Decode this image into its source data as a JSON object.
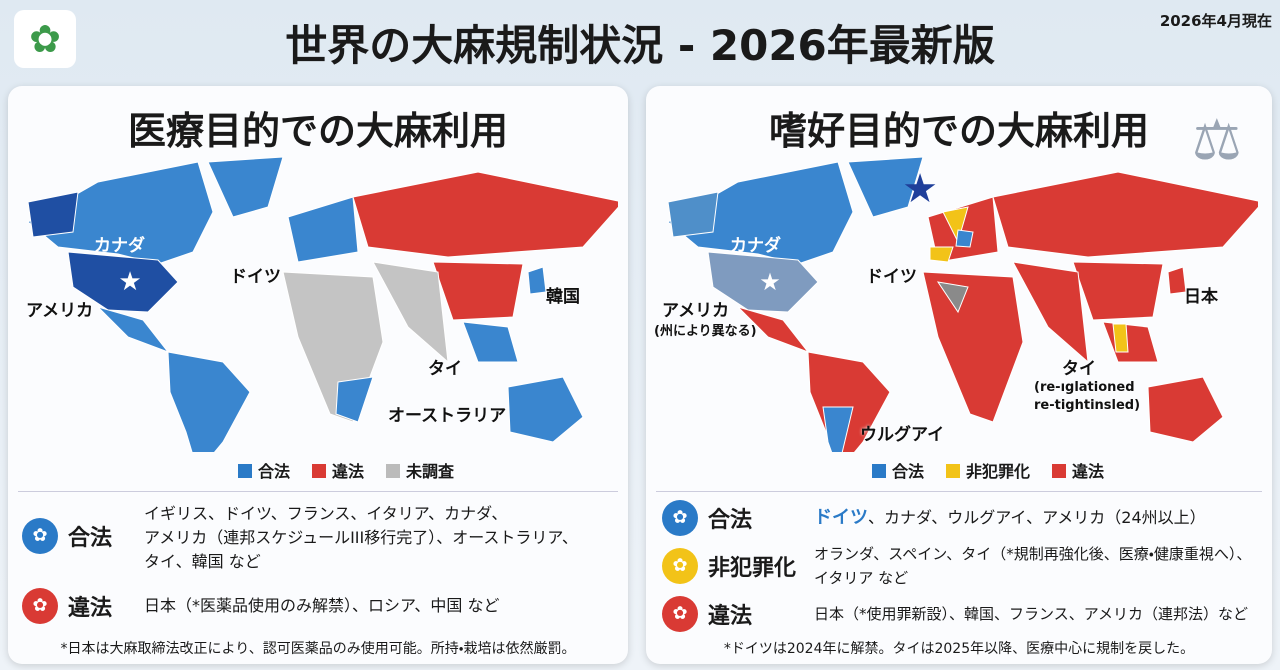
{
  "header": {
    "title": "世界の大麻規制状況 - 2026年最新版",
    "date": "2026年4月現在"
  },
  "medical": {
    "title": "医療目的での大麻利用",
    "map_labels": {
      "canada": "カナダ",
      "germany": "ドイツ",
      "usa": "アメリカ",
      "korea": "韓国",
      "thailand": "タイ",
      "australia": "オーストラリア"
    },
    "legend": [
      "合法",
      "違法",
      "未調査"
    ],
    "rows": [
      {
        "status": "合法",
        "lines": [
          "イギリス、ドイツ、フランス、イタリア、カナダ、",
          "アメリカ（連邦スケジュールIII移行完了）、オーストラリア、",
          "タイ、韓国 など"
        ]
      },
      {
        "status": "違法",
        "lines": [
          "日本（*医薬品使用のみ解禁）、ロシア、中国 など"
        ]
      }
    ],
    "note": "*日本は大麻取締法改正により、認可医薬品のみ使用可能。所持・栽培は依然厳罰。"
  },
  "recreational": {
    "title": "嗜好目的での大麻利用",
    "map_labels": {
      "canada": "カナダ",
      "germany": "ドイツ",
      "usa": "アメリカ",
      "usa_note": "(州により異なる)",
      "japan": "日本",
      "thailand": "タイ",
      "thailand_note_1": "(re-ıglationed",
      "thailand_note_2": "re-tightinsled)",
      "uruguay": "ウルグアイ"
    },
    "legend": [
      "合法",
      "非犯罪化",
      "違法"
    ],
    "rows": [
      {
        "status": "合法",
        "highlight": "ドイツ",
        "lines": [
          "、カナダ、ウルグアイ、アメリカ（24州以上）"
        ]
      },
      {
        "status": "非犯罪化",
        "lines": [
          "オランダ、スペイン、タイ（*規制再強化後、医療・健康重視へ）、",
          "イタリア など"
        ]
      },
      {
        "status": "違法",
        "lines": [
          "日本（*使用罪新設）、韓国、フランス、アメリカ（連邦法）など"
        ]
      }
    ],
    "note": "*ドイツは2024年に解禁。タイは2025年以降、医療中心に規制を戻した。"
  }
}
